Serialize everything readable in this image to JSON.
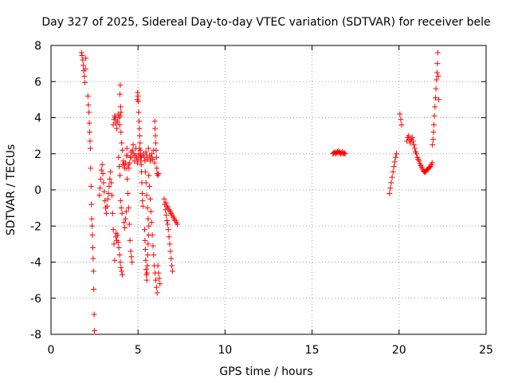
{
  "chart_data": {
    "type": "scatter",
    "title": "Day 327 of 2025, Sidereal Day-to-day VTEC variation (SDTVAR) for receiver bele",
    "xlabel": "GPS time / hours",
    "ylabel": "SDTVAR / TECUs",
    "xlim": [
      0,
      25
    ],
    "ylim": [
      -8,
      8
    ],
    "xticks": [
      0,
      5,
      10,
      15,
      20,
      25
    ],
    "yticks": [
      -8,
      -6,
      -4,
      -2,
      0,
      2,
      4,
      6,
      8
    ],
    "grid": true,
    "marker": "plus",
    "marker_color": "#ff0000",
    "series": [
      {
        "name": "SDTVAR",
        "points": [
          [
            1.75,
            7.6
          ],
          [
            1.78,
            7.45
          ],
          [
            1.82,
            7.2
          ],
          [
            1.85,
            6.9
          ],
          [
            1.88,
            6.6
          ],
          [
            1.92,
            6.3
          ],
          [
            1.95,
            5.95
          ],
          [
            1.98,
            6.7
          ],
          [
            2.0,
            7.3
          ],
          [
            2.12,
            5.2
          ],
          [
            2.15,
            4.7
          ],
          [
            2.18,
            4.3
          ],
          [
            2.2,
            3.7
          ],
          [
            2.22,
            3.2
          ],
          [
            2.24,
            2.7
          ],
          [
            2.26,
            2.3
          ],
          [
            2.28,
            1.2
          ],
          [
            2.3,
            0.2
          ],
          [
            2.32,
            -0.8
          ],
          [
            2.34,
            -1.6
          ],
          [
            2.36,
            -2.0
          ],
          [
            2.38,
            -2.5
          ],
          [
            2.4,
            -3.2
          ],
          [
            2.42,
            -3.8
          ],
          [
            2.44,
            -4.5
          ],
          [
            2.46,
            -5.5
          ],
          [
            2.48,
            -6.9
          ],
          [
            2.5,
            -7.8
          ],
          [
            2.78,
            -0.3
          ],
          [
            2.82,
            0.1
          ],
          [
            2.86,
            0.6
          ],
          [
            2.9,
            1.1
          ],
          [
            2.94,
            1.4
          ],
          [
            2.98,
            0.9
          ],
          [
            3.02,
            0.4
          ],
          [
            3.06,
            -0.1
          ],
          [
            3.1,
            -0.6
          ],
          [
            3.14,
            -1.0
          ],
          [
            3.18,
            -1.3
          ],
          [
            3.22,
            -0.9
          ],
          [
            3.26,
            -0.5
          ],
          [
            3.3,
            -0.2
          ],
          [
            3.34,
            0.2
          ],
          [
            3.38,
            0.6
          ],
          [
            3.42,
            1.0
          ],
          [
            3.46,
            0.4
          ],
          [
            3.5,
            -0.3
          ],
          [
            3.54,
            -1.3
          ],
          [
            3.58,
            -2.2
          ],
          [
            3.62,
            -3.0
          ],
          [
            3.66,
            -3.9
          ],
          [
            3.58,
            3.6
          ],
          [
            3.62,
            3.9
          ],
          [
            3.66,
            4.1
          ],
          [
            3.7,
            4.0
          ],
          [
            3.72,
            -2.6
          ],
          [
            3.74,
            -2.4
          ],
          [
            3.78,
            -2.8
          ],
          [
            3.82,
            -2.5
          ],
          [
            3.86,
            -2.9
          ],
          [
            3.9,
            -3.2
          ],
          [
            3.94,
            -3.6
          ],
          [
            3.98,
            -4.0
          ],
          [
            4.02,
            -4.3
          ],
          [
            4.06,
            -4.5
          ],
          [
            4.1,
            -4.7
          ],
          [
            3.74,
            3.7
          ],
          [
            3.78,
            3.4
          ],
          [
            3.82,
            3.8
          ],
          [
            3.86,
            4.2
          ],
          [
            3.9,
            4.0
          ],
          [
            3.94,
            3.6
          ],
          [
            3.98,
            4.1
          ],
          [
            4.02,
            3.2
          ],
          [
            4.06,
            2.6
          ],
          [
            4.1,
            2.2
          ],
          [
            3.88,
            1.8
          ],
          [
            3.92,
            1.3
          ],
          [
            3.96,
            0.8
          ],
          [
            4.0,
            -0.6
          ],
          [
            4.04,
            -1.0
          ],
          [
            4.08,
            -1.3
          ],
          [
            3.96,
            5.3
          ],
          [
            3.98,
            5.8
          ],
          [
            4.0,
            4.6
          ],
          [
            4.02,
            4.3
          ],
          [
            4.12,
            1.4
          ],
          [
            4.16,
            1.6
          ],
          [
            4.2,
            1.4
          ],
          [
            4.24,
            1.2
          ],
          [
            4.28,
            1.5
          ],
          [
            4.32,
            1.9
          ],
          [
            4.36,
            2.3
          ],
          [
            4.4,
            1.9
          ],
          [
            4.44,
            1.4
          ],
          [
            4.48,
            1.2
          ],
          [
            4.52,
            1.5
          ],
          [
            4.56,
            1.8
          ],
          [
            4.6,
            2.1
          ],
          [
            4.64,
            1.8
          ],
          [
            4.68,
            2.2
          ],
          [
            4.72,
            2.5
          ],
          [
            4.76,
            2.0
          ],
          [
            4.8,
            1.6
          ],
          [
            4.84,
            1.9
          ],
          [
            4.88,
            2.3
          ],
          [
            4.92,
            1.8
          ],
          [
            4.96,
            1.5
          ],
          [
            5.0,
            1.7
          ],
          [
            5.04,
            2.0
          ],
          [
            5.08,
            2.3
          ],
          [
            5.12,
            1.9
          ],
          [
            5.16,
            1.6
          ],
          [
            5.2,
            1.8
          ],
          [
            4.2,
            -1.8
          ],
          [
            4.24,
            -2.1
          ],
          [
            4.28,
            -1.6
          ],
          [
            4.32,
            -1.2
          ],
          [
            4.35,
            1.2
          ],
          [
            4.38,
            0.6
          ],
          [
            4.42,
            -0.2
          ],
          [
            4.46,
            -1.0
          ],
          [
            4.5,
            -1.9
          ],
          [
            4.54,
            -2.8
          ],
          [
            4.58,
            -3.4
          ],
          [
            4.62,
            -3.7
          ],
          [
            4.66,
            -4.0
          ],
          [
            4.96,
            5.0
          ],
          [
            4.98,
            5.4
          ],
          [
            5.0,
            5.2
          ],
          [
            5.02,
            4.9
          ],
          [
            5.04,
            4.3
          ],
          [
            5.06,
            3.8
          ],
          [
            5.08,
            3.4
          ],
          [
            5.1,
            3.0
          ],
          [
            5.12,
            2.6
          ],
          [
            5.14,
            2.2
          ],
          [
            5.16,
            1.9
          ],
          [
            5.18,
            1.4
          ],
          [
            5.2,
            1.0
          ],
          [
            5.22,
            0.4
          ],
          [
            5.24,
            -0.2
          ],
          [
            5.26,
            -0.6
          ],
          [
            5.28,
            -0.9
          ],
          [
            5.3,
            2.0
          ],
          [
            5.35,
            1.8
          ],
          [
            5.4,
            1.6
          ],
          [
            5.45,
            2.1
          ],
          [
            5.5,
            1.9
          ],
          [
            5.55,
            1.7
          ],
          [
            5.6,
            2.3
          ],
          [
            5.65,
            1.9
          ],
          [
            5.7,
            1.6
          ],
          [
            5.75,
            1.8
          ],
          [
            5.8,
            2.0
          ],
          [
            5.85,
            1.7
          ],
          [
            5.9,
            2.2
          ],
          [
            5.95,
            1.5
          ],
          [
            5.38,
            -2.2
          ],
          [
            5.4,
            -2.8
          ],
          [
            5.42,
            -3.3
          ],
          [
            5.44,
            -3.9
          ],
          [
            5.46,
            -4.4
          ],
          [
            5.48,
            -4.7
          ],
          [
            5.5,
            -5.0
          ],
          [
            5.52,
            -4.6
          ],
          [
            5.54,
            -4.2
          ],
          [
            5.56,
            -3.6
          ],
          [
            5.58,
            -3.0
          ],
          [
            5.6,
            -2.5
          ],
          [
            5.62,
            -2.0
          ],
          [
            5.42,
            1.0
          ],
          [
            5.46,
            0.4
          ],
          [
            5.5,
            -0.3
          ],
          [
            5.54,
            -1.0
          ],
          [
            5.58,
            -1.6
          ],
          [
            5.62,
            0.8
          ],
          [
            5.66,
            0.2
          ],
          [
            5.7,
            -0.5
          ],
          [
            5.74,
            -1.2
          ],
          [
            5.78,
            -1.8
          ],
          [
            5.82,
            -2.5
          ],
          [
            5.86,
            -3.1
          ],
          [
            5.9,
            -3.6
          ],
          [
            5.94,
            -4.2
          ],
          [
            5.98,
            -4.6
          ],
          [
            6.02,
            -5.0
          ],
          [
            6.06,
            -5.4
          ],
          [
            6.1,
            -5.7
          ],
          [
            5.96,
            3.8
          ],
          [
            5.98,
            3.4
          ],
          [
            6.0,
            3.0
          ],
          [
            6.02,
            2.6
          ],
          [
            6.04,
            2.2
          ],
          [
            6.06,
            1.8
          ],
          [
            6.08,
            1.2
          ],
          [
            6.1,
            0.9
          ],
          [
            6.14,
            0.8
          ],
          [
            6.18,
            0.9
          ],
          [
            6.14,
            -4.2
          ],
          [
            6.18,
            -4.6
          ],
          [
            6.22,
            -4.9
          ],
          [
            6.26,
            -5.2
          ],
          [
            6.5,
            -0.5
          ],
          [
            6.54,
            -0.8
          ],
          [
            6.58,
            -1.1
          ],
          [
            6.62,
            -1.4
          ],
          [
            6.66,
            -1.7
          ],
          [
            6.7,
            -1.9
          ],
          [
            6.74,
            -2.2
          ],
          [
            6.78,
            -2.6
          ],
          [
            6.82,
            -3.0
          ],
          [
            6.86,
            -3.4
          ],
          [
            6.9,
            -3.8
          ],
          [
            6.94,
            -4.2
          ],
          [
            6.98,
            -4.5
          ],
          [
            6.6,
            -0.7
          ],
          [
            6.66,
            -0.9
          ],
          [
            6.72,
            -1.0
          ],
          [
            6.78,
            -1.1
          ],
          [
            6.84,
            -1.2
          ],
          [
            6.9,
            -1.3
          ],
          [
            6.96,
            -1.4
          ],
          [
            7.02,
            -1.5
          ],
          [
            7.08,
            -1.6
          ],
          [
            7.14,
            -1.7
          ],
          [
            7.2,
            -1.8
          ],
          [
            7.26,
            -1.9
          ],
          [
            16.2,
            2.0
          ],
          [
            16.25,
            2.05
          ],
          [
            16.3,
            2.1
          ],
          [
            16.35,
            2.0
          ],
          [
            16.4,
            2.05
          ],
          [
            16.45,
            2.1
          ],
          [
            16.5,
            2.15
          ],
          [
            16.55,
            2.05
          ],
          [
            16.6,
            2.1
          ],
          [
            16.65,
            2.0
          ],
          [
            16.7,
            2.05
          ],
          [
            16.75,
            2.1
          ],
          [
            16.8,
            2.0
          ],
          [
            16.85,
            2.05
          ],
          [
            16.9,
            2.0
          ],
          [
            19.45,
            -0.2
          ],
          [
            19.5,
            0.1
          ],
          [
            19.55,
            0.4
          ],
          [
            19.6,
            0.7
          ],
          [
            19.65,
            1.0
          ],
          [
            19.7,
            1.3
          ],
          [
            19.75,
            1.55
          ],
          [
            19.8,
            1.8
          ],
          [
            19.85,
            2.0
          ],
          [
            20.05,
            4.2
          ],
          [
            20.1,
            3.9
          ],
          [
            20.15,
            3.6
          ],
          [
            20.45,
            2.7
          ],
          [
            20.5,
            2.9
          ],
          [
            20.55,
            3.0
          ],
          [
            20.6,
            2.8
          ],
          [
            20.65,
            2.6
          ],
          [
            20.7,
            2.8
          ],
          [
            20.75,
            2.9
          ],
          [
            20.8,
            2.7
          ],
          [
            20.85,
            2.5
          ],
          [
            20.9,
            2.3
          ],
          [
            20.95,
            2.1
          ],
          [
            21.0,
            2.0
          ],
          [
            21.05,
            1.8
          ],
          [
            21.1,
            1.7
          ],
          [
            21.15,
            1.6
          ],
          [
            21.2,
            1.45
          ],
          [
            21.25,
            1.35
          ],
          [
            21.3,
            1.25
          ],
          [
            21.35,
            1.15
          ],
          [
            21.4,
            1.05
          ],
          [
            21.45,
            1.0
          ],
          [
            21.5,
            1.0
          ],
          [
            21.55,
            1.05
          ],
          [
            21.6,
            1.1
          ],
          [
            21.65,
            1.15
          ],
          [
            21.7,
            1.2
          ],
          [
            21.75,
            1.25
          ],
          [
            21.8,
            1.3
          ],
          [
            21.85,
            1.4
          ],
          [
            21.9,
            1.5
          ],
          [
            21.92,
            2.5
          ],
          [
            21.95,
            2.8
          ],
          [
            21.98,
            3.2
          ],
          [
            22.0,
            3.6
          ],
          [
            22.03,
            4.1
          ],
          [
            22.06,
            4.6
          ],
          [
            22.09,
            5.1
          ],
          [
            22.12,
            5.6
          ],
          [
            22.15,
            6.1
          ],
          [
            22.18,
            6.5
          ],
          [
            22.2,
            7.0
          ],
          [
            22.22,
            7.6
          ],
          [
            22.25,
            6.3
          ],
          [
            22.28,
            5.0
          ]
        ]
      }
    ]
  }
}
